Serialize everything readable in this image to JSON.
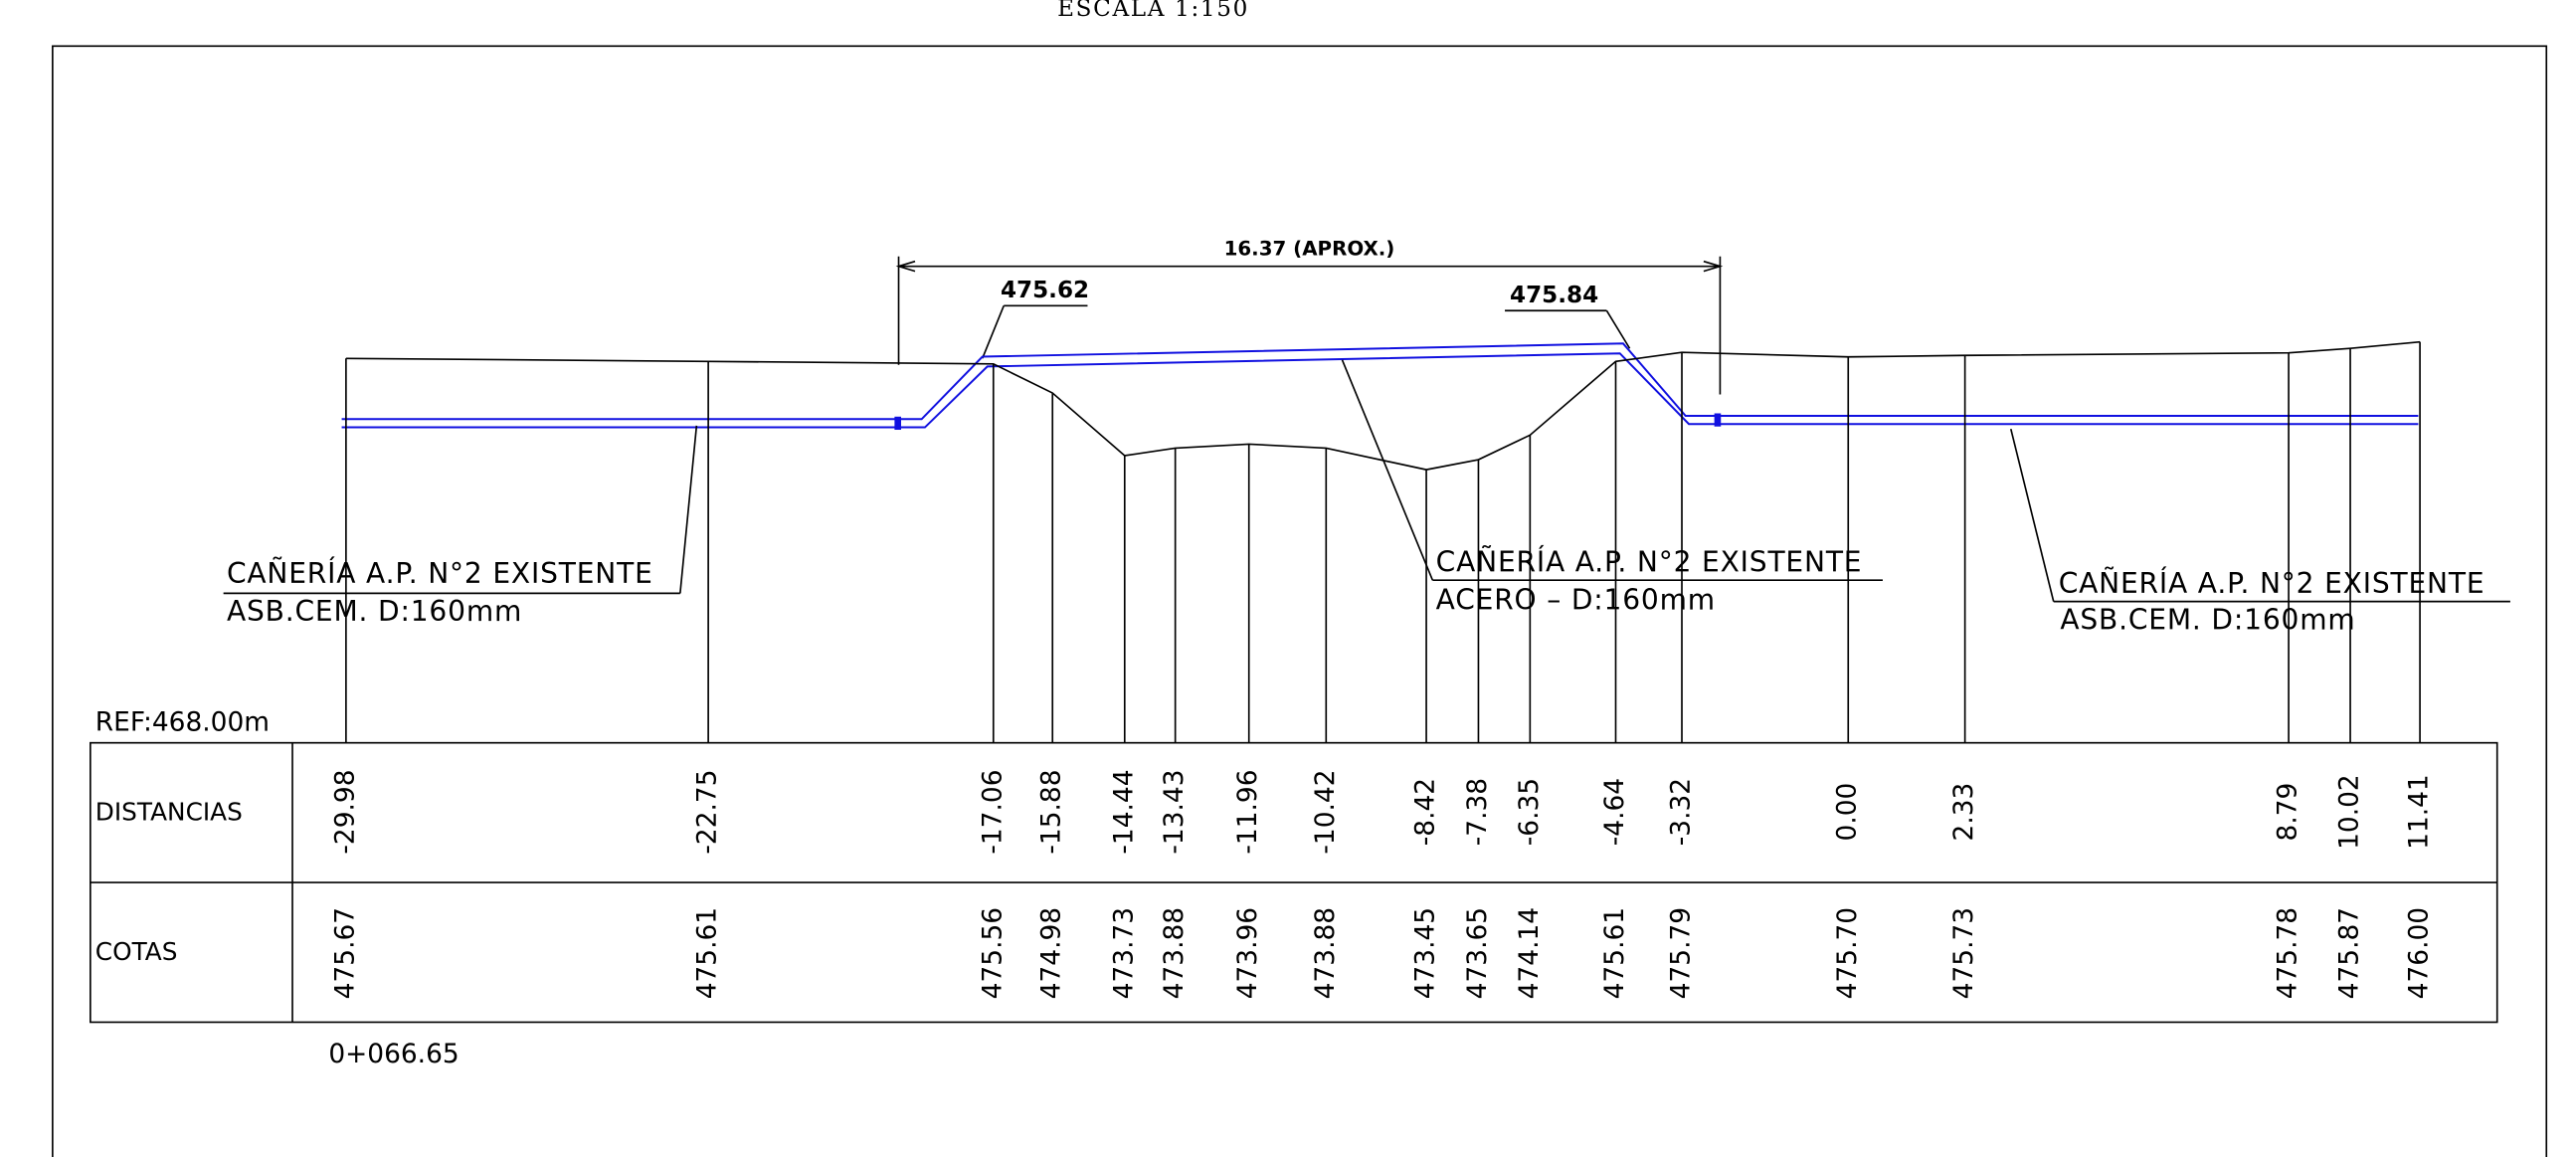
{
  "scale_title": "ESCALA 1:150",
  "dimension": "16.37 (APROX.)",
  "elevations": [
    "475.62",
    "475.84"
  ],
  "pipe_labels": [
    {
      "line1": "CAÑERÍA A.P. N°2 EXISTENTE",
      "line2": "ASB.CEM. D:160mm"
    },
    {
      "line1": "CAÑERÍA A.P. N°2 EXISTENTE",
      "line2": "ACERO – D:160mm"
    },
    {
      "line1": "CAÑERÍA A.P. N°2 EXISTENTE",
      "line2": "ASB.CEM. D:160mm"
    }
  ],
  "ref": "REF:468.00m",
  "table": {
    "headers": [
      "DISTANCIAS",
      "COTAS"
    ],
    "distances": [
      "-29.98",
      "-22.75",
      "-17.06",
      "-15.88",
      "-14.44",
      "-13.43",
      "-11.96",
      "-10.42",
      "-8.42",
      "-7.38",
      "-6.35",
      "-4.64",
      "-3.32",
      "0.00",
      "2.33",
      "8.79",
      "10.02",
      "11.41"
    ],
    "cotas": [
      "475.67",
      "475.61",
      "475.56",
      "474.98",
      "473.73",
      "473.88",
      "473.96",
      "473.88",
      "473.45",
      "473.65",
      "474.14",
      "475.61",
      "475.79",
      "475.70",
      "475.73",
      "475.78",
      "475.87",
      "476.00"
    ]
  },
  "station": "0+066.65"
}
